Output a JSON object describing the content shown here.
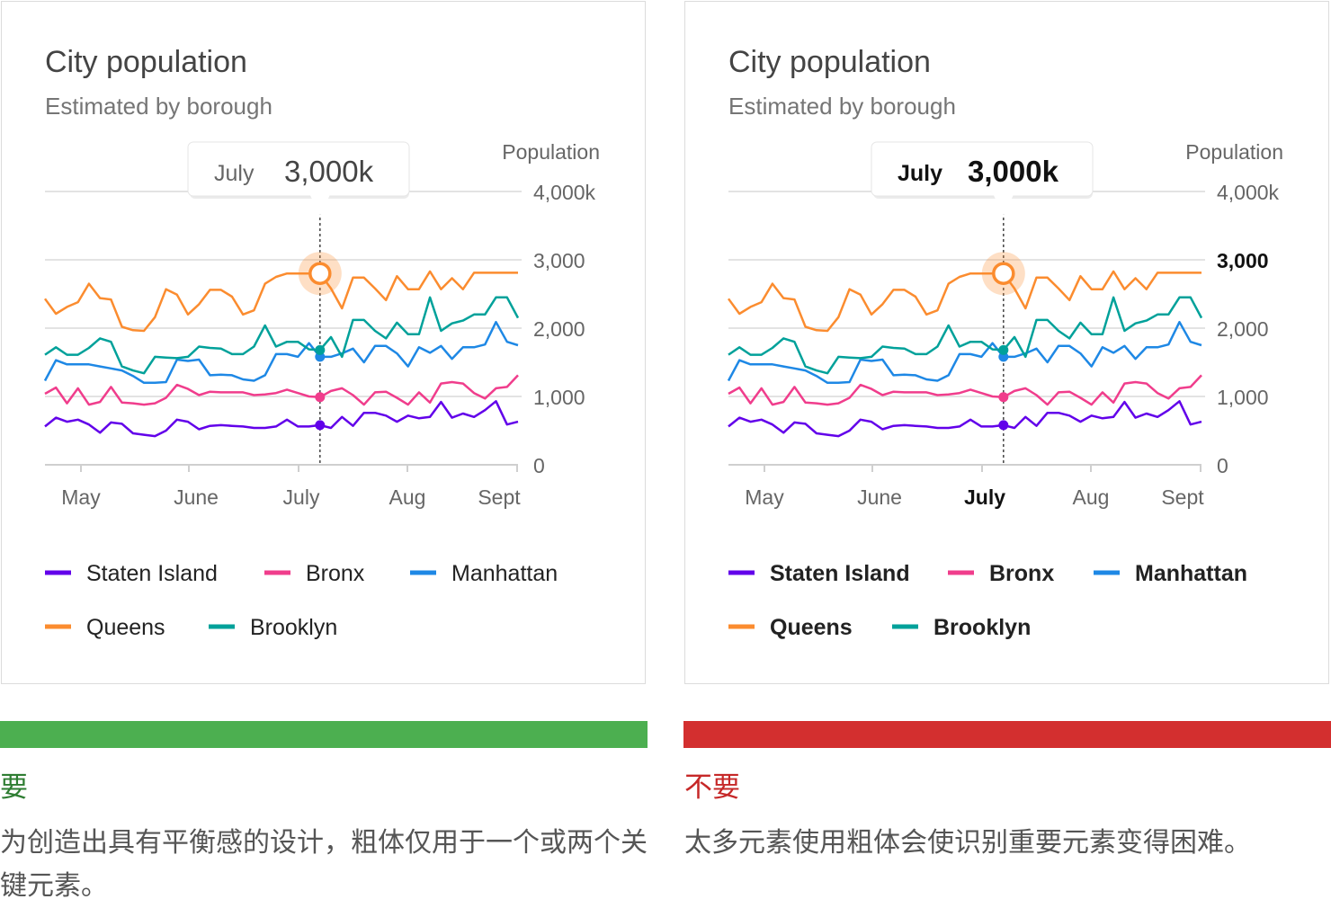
{
  "colors": {
    "staten_island": "#6200ea",
    "bronx": "#f03d8c",
    "manhattan": "#1e88e5",
    "queens": "#fb8c2f",
    "brooklyn": "#00a19a",
    "do_bar": "#4caf50",
    "dont_bar": "#d32f2f"
  },
  "chart_data": [
    {
      "type": "line",
      "variant": "do",
      "title": "City population",
      "subtitle": "Estimated by borough",
      "ylabel": "Population",
      "y_ticks": [
        "0",
        "1,000",
        "2,000",
        "3,000",
        "4,000k"
      ],
      "y_tick_values": [
        0,
        1000,
        2000,
        3000,
        4000
      ],
      "ylim": [
        0,
        4000
      ],
      "x_ticks": [
        "May",
        "June",
        "July",
        "Aug",
        "Sept"
      ],
      "highlight_x_tick": "",
      "highlight_y_tick": "",
      "bold_legend": false,
      "grid": true,
      "legend_position": "bottom",
      "tooltip": {
        "month": "July",
        "value": "3,000k"
      },
      "highlight_index": 25,
      "series": [
        {
          "name": "Staten Island",
          "color_key": "staten_island",
          "values": [
            560,
            690,
            630,
            660,
            590,
            470,
            620,
            600,
            460,
            440,
            420,
            500,
            660,
            630,
            520,
            570,
            580,
            570,
            560,
            540,
            540,
            560,
            660,
            560,
            560,
            580,
            540,
            700,
            570,
            760,
            760,
            720,
            630,
            720,
            680,
            700,
            920,
            690,
            750,
            700,
            800,
            930,
            590,
            630
          ]
        },
        {
          "name": "Bronx",
          "color_key": "bronx",
          "values": [
            1040,
            1130,
            900,
            1120,
            880,
            920,
            1140,
            910,
            900,
            880,
            900,
            980,
            1170,
            1110,
            1020,
            1070,
            1060,
            1060,
            1060,
            1020,
            1030,
            1050,
            1100,
            1050,
            1000,
            990,
            1080,
            1120,
            1020,
            880,
            1060,
            1070,
            980,
            880,
            1060,
            910,
            1190,
            1210,
            1190,
            1050,
            970,
            1120,
            1140,
            1310
          ]
        },
        {
          "name": "Manhattan",
          "color_key": "manhattan",
          "values": [
            1230,
            1530,
            1470,
            1470,
            1470,
            1440,
            1410,
            1380,
            1300,
            1200,
            1200,
            1210,
            1540,
            1520,
            1540,
            1310,
            1320,
            1310,
            1250,
            1230,
            1310,
            1620,
            1620,
            1580,
            1780,
            1580,
            1580,
            1630,
            1700,
            1500,
            1740,
            1740,
            1630,
            1440,
            1720,
            1640,
            1740,
            1550,
            1720,
            1720,
            1760,
            2090,
            1800,
            1750
          ]
        },
        {
          "name": "Queens",
          "color_key": "queens",
          "values": [
            2430,
            2210,
            2310,
            2380,
            2650,
            2440,
            2420,
            2020,
            1970,
            1960,
            2160,
            2570,
            2490,
            2200,
            2350,
            2560,
            2560,
            2460,
            2200,
            2260,
            2650,
            2750,
            2800,
            2800,
            2800,
            2800,
            2580,
            2290,
            2740,
            2740,
            2580,
            2410,
            2760,
            2570,
            2570,
            2830,
            2570,
            2730,
            2570,
            2810,
            2810,
            2810,
            2810,
            2810
          ]
        },
        {
          "name": "Brooklyn",
          "color_key": "brooklyn",
          "values": [
            1610,
            1720,
            1610,
            1610,
            1710,
            1850,
            1800,
            1440,
            1380,
            1340,
            1580,
            1570,
            1560,
            1580,
            1730,
            1710,
            1700,
            1620,
            1620,
            1730,
            2040,
            1730,
            1800,
            1800,
            1690,
            1680,
            1870,
            1580,
            2120,
            2120,
            1960,
            1850,
            2080,
            1910,
            1910,
            2450,
            1960,
            2070,
            2110,
            2200,
            2200,
            2450,
            2450,
            2150
          ]
        }
      ]
    },
    {
      "type": "line",
      "variant": "dont",
      "title": "City population",
      "subtitle": "Estimated by borough",
      "ylabel": "Population",
      "y_ticks": [
        "0",
        "1,000",
        "2,000",
        "3,000",
        "4,000k"
      ],
      "y_tick_values": [
        0,
        1000,
        2000,
        3000,
        4000
      ],
      "ylim": [
        0,
        4000
      ],
      "x_ticks": [
        "May",
        "June",
        "July",
        "Aug",
        "Sept"
      ],
      "highlight_x_tick": "July",
      "highlight_y_tick": "3,000",
      "bold_legend": true,
      "grid": true,
      "legend_position": "bottom",
      "tooltip": {
        "month": "July",
        "value": "3,000k"
      },
      "highlight_index": 25,
      "series": [
        {
          "name": "Staten Island",
          "color_key": "staten_island",
          "values": [
            560,
            690,
            630,
            660,
            590,
            470,
            620,
            600,
            460,
            440,
            420,
            500,
            660,
            630,
            520,
            570,
            580,
            570,
            560,
            540,
            540,
            560,
            660,
            560,
            560,
            580,
            540,
            700,
            570,
            760,
            760,
            720,
            630,
            720,
            680,
            700,
            920,
            690,
            750,
            700,
            800,
            930,
            590,
            630
          ]
        },
        {
          "name": "Bronx",
          "color_key": "bronx",
          "values": [
            1040,
            1130,
            900,
            1120,
            880,
            920,
            1140,
            910,
            900,
            880,
            900,
            980,
            1170,
            1110,
            1020,
            1070,
            1060,
            1060,
            1060,
            1020,
            1030,
            1050,
            1100,
            1050,
            1000,
            990,
            1080,
            1120,
            1020,
            880,
            1060,
            1070,
            980,
            880,
            1060,
            910,
            1190,
            1210,
            1190,
            1050,
            970,
            1120,
            1140,
            1310
          ]
        },
        {
          "name": "Manhattan",
          "color_key": "manhattan",
          "values": [
            1230,
            1530,
            1470,
            1470,
            1470,
            1440,
            1410,
            1380,
            1300,
            1200,
            1200,
            1210,
            1540,
            1520,
            1540,
            1310,
            1320,
            1310,
            1250,
            1230,
            1310,
            1620,
            1620,
            1580,
            1780,
            1580,
            1580,
            1630,
            1700,
            1500,
            1740,
            1740,
            1630,
            1440,
            1720,
            1640,
            1740,
            1550,
            1720,
            1720,
            1760,
            2090,
            1800,
            1750
          ]
        },
        {
          "name": "Queens",
          "color_key": "queens",
          "values": [
            2430,
            2210,
            2310,
            2380,
            2650,
            2440,
            2420,
            2020,
            1970,
            1960,
            2160,
            2570,
            2490,
            2200,
            2350,
            2560,
            2560,
            2460,
            2200,
            2260,
            2650,
            2750,
            2800,
            2800,
            2800,
            2800,
            2580,
            2290,
            2740,
            2740,
            2580,
            2410,
            2760,
            2570,
            2570,
            2830,
            2570,
            2730,
            2570,
            2810,
            2810,
            2810,
            2810,
            2810
          ]
        },
        {
          "name": "Brooklyn",
          "color_key": "brooklyn",
          "values": [
            1610,
            1720,
            1610,
            1610,
            1710,
            1850,
            1800,
            1440,
            1380,
            1340,
            1580,
            1570,
            1560,
            1580,
            1730,
            1710,
            1700,
            1620,
            1620,
            1730,
            2040,
            1730,
            1800,
            1800,
            1690,
            1680,
            1870,
            1580,
            2120,
            2120,
            1960,
            1850,
            2080,
            1910,
            1910,
            2450,
            1960,
            2070,
            2110,
            2200,
            2200,
            2450,
            2450,
            2150
          ]
        }
      ]
    }
  ],
  "guidance": {
    "do": {
      "label": "要",
      "caption": "为创造出具有平衡感的设计，粗体仅用于一个或两个关键元素。"
    },
    "dont": {
      "label": "不要",
      "caption": "太多元素使用粗体会使识别重要元素变得困难。"
    }
  }
}
